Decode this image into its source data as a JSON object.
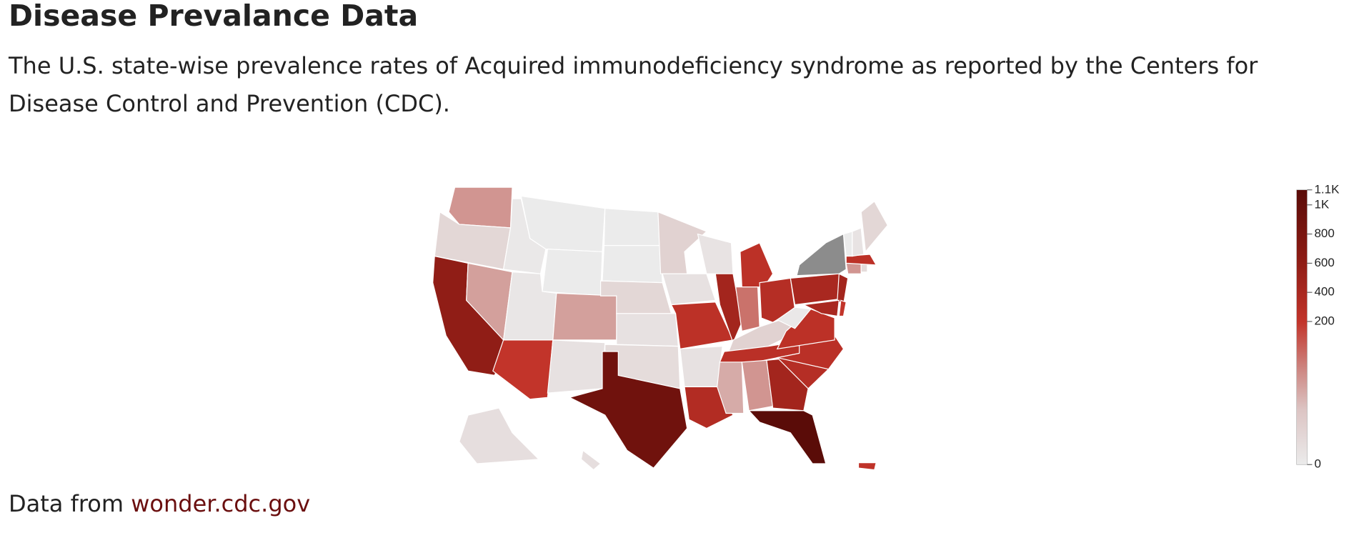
{
  "header": {
    "title": "Disease Prevalance Data",
    "description": "The U.S. state-wise prevalence rates of Acquired immunodeficiency syndrome as reported by the Centers for Disease Control and Prevention (CDC)."
  },
  "chart_data": {
    "type": "choropleth",
    "values": [
      120,
      40,
      600,
      110,
      5,
      0,
      0,
      10,
      110,
      200,
      20,
      0,
      0,
      40,
      20,
      30,
      900,
      50,
      20,
      250,
      20,
      330,
      15,
      450,
      250,
      150,
      300,
      50,
      260,
      100,
      120,
      450,
      1100,
      300,
      260,
      250,
      5,
      400,
      null,
      450,
      400,
      200,
      120,
      30,
      250,
      0,
      15,
      40,
      25,
      25,
      220
    ],
    "colorscale": [
      [
        0,
        "#ebebeb"
      ],
      [
        0.2,
        "#dcc4c3"
      ],
      [
        0.35,
        "#cd8580"
      ],
      [
        0.52,
        "#c2342a"
      ],
      [
        0.75,
        "#8c1b14"
      ],
      [
        1,
        "#5a0c08"
      ]
    ],
    "missing_color": "#8c8c8c",
    "clim": [
      0,
      1100
    ],
    "cticks": [
      0,
      200,
      400,
      600,
      800,
      {
        "value": 1000,
        "label": "1K"
      },
      {
        "value": 1100,
        "label": "1.1K"
      }
    ]
  },
  "footer": {
    "text": "Data from",
    "link": "wonder.cdc.gov"
  }
}
